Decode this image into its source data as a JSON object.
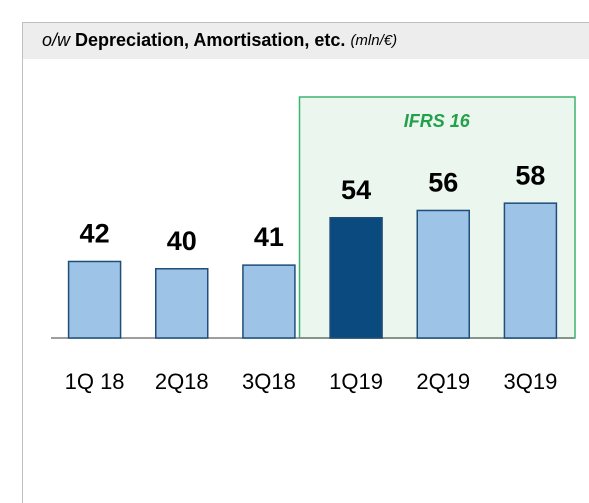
{
  "chart_data": {
    "type": "bar",
    "title_prefix": "o/w",
    "title": "Depreciation, Amortisation, etc.",
    "unit": "(mln/€)",
    "annotation": "IFRS 16",
    "categories": [
      "1Q 18",
      "2Q18",
      "3Q18",
      "1Q19",
      "2Q19",
      "3Q19"
    ],
    "values": [
      42,
      40,
      41,
      54,
      56,
      58
    ],
    "colors": [
      "#9dc3e6",
      "#9dc3e6",
      "#9dc3e6",
      "#0b4a7e",
      "#9dc3e6",
      "#9dc3e6"
    ],
    "ylim": [
      21,
      80
    ]
  }
}
